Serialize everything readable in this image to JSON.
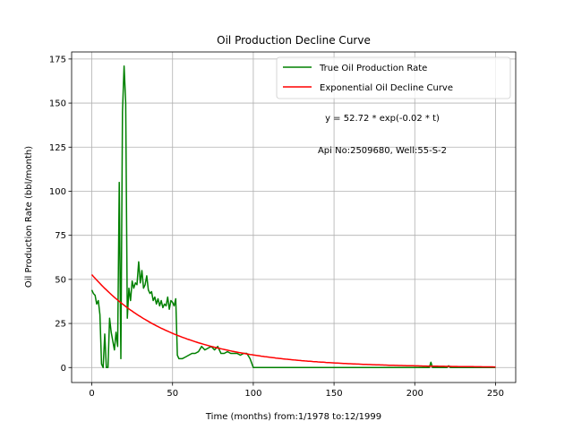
{
  "chart_data": {
    "type": "line",
    "title": "Oil Production Decline Curve",
    "xlabel": "Time (months) from:1/1978 to:12/1999",
    "ylabel": "Oil Production Rate (bbl/month)",
    "xlim": [
      -12.5,
      262.5
    ],
    "ylim": [
      -8.5,
      179
    ],
    "x_ticks": [
      0,
      50,
      100,
      150,
      200,
      250
    ],
    "y_ticks": [
      0,
      25,
      50,
      75,
      100,
      125,
      150,
      175
    ],
    "grid": true,
    "legend_position": "top-right",
    "annotations": [
      "y = 52.72 * exp(-0.02 * t)",
      "Api No:2509680, Well:55-S-2"
    ],
    "series": [
      {
        "name": "True Oil Production Rate",
        "color": "#008000",
        "x": [
          0,
          1,
          2,
          3,
          4,
          5,
          6,
          7,
          8,
          9,
          10,
          11,
          12,
          13,
          14,
          15,
          16,
          17,
          18,
          19,
          20,
          21,
          22,
          23,
          24,
          25,
          26,
          27,
          28,
          29,
          30,
          31,
          32,
          33,
          34,
          35,
          36,
          37,
          38,
          39,
          40,
          41,
          42,
          43,
          44,
          45,
          46,
          47,
          48,
          49,
          50,
          51,
          52,
          53,
          54,
          56,
          58,
          60,
          62,
          64,
          66,
          68,
          70,
          72,
          74,
          76,
          78,
          80,
          82,
          84,
          86,
          88,
          90,
          92,
          94,
          96,
          98,
          100,
          120,
          150,
          180,
          200,
          209,
          210,
          211,
          212,
          220,
          221,
          222,
          230,
          240,
          250
        ],
        "y": [
          44,
          42,
          41,
          36,
          38,
          30,
          2,
          0,
          19,
          0,
          0,
          28,
          20,
          15,
          10,
          20,
          12,
          105,
          5,
          145,
          171,
          150,
          28,
          45,
          38,
          49,
          45,
          48,
          47,
          60,
          48,
          55,
          45,
          47,
          52,
          44,
          42,
          43,
          38,
          40,
          36,
          39,
          35,
          38,
          34,
          36,
          35,
          40,
          33,
          38,
          37,
          35,
          39,
          7,
          5,
          5,
          6,
          7,
          8,
          8,
          9,
          12,
          10,
          11,
          12,
          10,
          12,
          8,
          8,
          9,
          8,
          8,
          8,
          7,
          8,
          8,
          5,
          0,
          0,
          0,
          0,
          0,
          0,
          3,
          0,
          0,
          0,
          1,
          0,
          0,
          0,
          0
        ]
      },
      {
        "name": "Exponential Oil Decline Curve",
        "color": "#ff0000",
        "equation": {
          "a": 52.72,
          "b": -0.02
        },
        "x_range": [
          0,
          250
        ]
      }
    ]
  }
}
